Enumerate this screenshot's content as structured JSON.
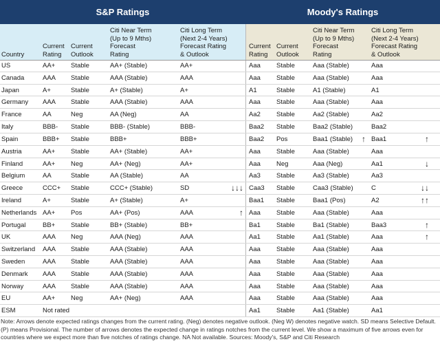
{
  "header": {
    "sp_title": "S&P Ratings",
    "moodys_title": "Moody's Ratings"
  },
  "columns": {
    "country": [
      "Country"
    ],
    "sp": [
      [
        "Current",
        "Rating"
      ],
      [
        "Current",
        "Outlook"
      ],
      [
        "Citi Near Term",
        "(Up to 9 Mths)",
        "Forecast",
        "Rating"
      ],
      [
        "Citi Long Term",
        "(Next 2-4 Years)",
        "Forecast Rating",
        "& Outlook"
      ]
    ],
    "moodys": [
      [
        "Current",
        "Rating"
      ],
      [
        "Current",
        "Outlook"
      ],
      [
        "Citi Near Term",
        "(Up to 9 Mths)",
        "Forecast",
        "Rating"
      ],
      [
        "Citi Long Term",
        "(Next 2-4 Years)",
        "Forecast Rating",
        "& Outlook"
      ]
    ]
  },
  "rows": [
    {
      "country": "US",
      "sp": [
        "AA+",
        "Stable",
        "AA+ (Stable)",
        "AA+"
      ],
      "moodys": [
        "Aaa",
        "Stable",
        "Aaa (Stable)",
        "Aaa"
      ]
    },
    {
      "country": "Canada",
      "sp": [
        "AAA",
        "Stable",
        "AAA (Stable)",
        "AAA"
      ],
      "moodys": [
        "Aaa",
        "Stable",
        "Aaa (Stable)",
        "Aaa"
      ]
    },
    {
      "country": "Japan",
      "sp": [
        "A+",
        "Stable",
        "A+ (Stable)",
        "A+"
      ],
      "moodys": [
        "A1",
        "Stable",
        "A1 (Stable)",
        "A1"
      ]
    },
    {
      "country": "Germany",
      "sp": [
        "AAA",
        "Stable",
        "AAA (Stable)",
        "AAA"
      ],
      "moodys": [
        "Aaa",
        "Stable",
        "Aaa (Stable)",
        "Aaa"
      ]
    },
    {
      "country": "France",
      "sp": [
        "AA",
        "Neg",
        "AA (Neg)",
        "AA"
      ],
      "moodys": [
        "Aa2",
        "Stable",
        "Aa2 (Stable)",
        "Aa2"
      ]
    },
    {
      "country": "Italy",
      "sp": [
        "BBB-",
        "Stable",
        "BBB- (Stable)",
        "BBB-"
      ],
      "moodys": [
        "Baa2",
        "Stable",
        "Baa2 (Stable)",
        "Baa2"
      ]
    },
    {
      "country": "Spain",
      "sp": [
        "BBB+",
        "Stable",
        "BBB+",
        "BBB+"
      ],
      "moodys": [
        "Baa2",
        "Pos",
        "Baa1 (Stable)",
        "Baa1"
      ],
      "moodys_near_arrow": "↑",
      "moodys_long_arrow": "↑"
    },
    {
      "country": "Austria",
      "sp": [
        "AA+",
        "Stable",
        "AA+ (Stable)",
        "AA+"
      ],
      "moodys": [
        "Aaa",
        "Stable",
        "Aaa (Stable)",
        "Aaa"
      ]
    },
    {
      "country": "Finland",
      "sp": [
        "AA+",
        "Neg",
        "AA+ (Neg)",
        "AA+"
      ],
      "moodys": [
        "Aaa",
        "Neg",
        "Aaa (Neg)",
        "Aa1"
      ],
      "moodys_long_arrow": "↓"
    },
    {
      "country": "Belgium",
      "sp": [
        "AA",
        "Stable",
        "AA (Stable)",
        "AA"
      ],
      "moodys": [
        "Aa3",
        "Stable",
        "Aa3 (Stable)",
        "Aa3"
      ]
    },
    {
      "country": "Greece",
      "sp": [
        "CCC+",
        "Stable",
        "CCC+ (Stable)",
        "SD"
      ],
      "sp_arrow": "↓↓↓",
      "moodys": [
        "Caa3",
        "Stable",
        "Caa3 (Stable)",
        "C"
      ],
      "moodys_long_arrow": "↓↓"
    },
    {
      "country": "Ireland",
      "sp": [
        "A+",
        "Stable",
        "A+ (Stable)",
        "A+"
      ],
      "moodys": [
        "Baa1",
        "Stable",
        "Baa1 (Pos)",
        "A2"
      ],
      "moodys_long_arrow": "↑↑"
    },
    {
      "country": "Netherlands",
      "sp": [
        "AA+",
        "Pos",
        "AA+ (Pos)",
        "AAA"
      ],
      "sp_arrow": "↑",
      "moodys": [
        "Aaa",
        "Stable",
        "Aaa (Stable)",
        "Aaa"
      ]
    },
    {
      "country": "Portugal",
      "sp": [
        "BB+",
        "Stable",
        "BB+ (Stable)",
        "BB+"
      ],
      "moodys": [
        "Ba1",
        "Stable",
        "Ba1 (Stable)",
        "Baa3"
      ],
      "moodys_long_arrow": "↑"
    },
    {
      "country": "UK",
      "sp": [
        "AAA",
        "Neg",
        "AAA (Neg)",
        "AAA"
      ],
      "moodys": [
        "Aa1",
        "Stable",
        "Aa1 (Stable)",
        "Aaa"
      ],
      "moodys_long_arrow": "↑"
    },
    {
      "country": "Switzerland",
      "sp": [
        "AAA",
        "Stable",
        "AAA (Stable)",
        "AAA"
      ],
      "moodys": [
        "Aaa",
        "Stable",
        "Aaa (Stable)",
        "Aaa"
      ]
    },
    {
      "country": "Sweden",
      "sp": [
        "AAA",
        "Stable",
        "AAA (Stable)",
        "AAA"
      ],
      "moodys": [
        "Aaa",
        "Stable",
        "Aaa (Stable)",
        "Aaa"
      ]
    },
    {
      "country": "Denmark",
      "sp": [
        "AAA",
        "Stable",
        "AAA (Stable)",
        "AAA"
      ],
      "moodys": [
        "Aaa",
        "Stable",
        "Aaa (Stable)",
        "Aaa"
      ]
    },
    {
      "country": "Norway",
      "sp": [
        "AAA",
        "Stable",
        "AAA (Stable)",
        "AAA"
      ],
      "moodys": [
        "Aaa",
        "Stable",
        "Aaa (Stable)",
        "Aaa"
      ]
    },
    {
      "country": "EU",
      "sp": [
        "AA+",
        "Neg",
        "AA+  (Neg)",
        "AAA"
      ],
      "moodys": [
        "Aaa",
        "Stable",
        "Aaa (Stable)",
        "Aaa"
      ]
    },
    {
      "country": "ESM",
      "sp": [
        "Not rated"
      ],
      "moodys": [
        "Aa1",
        "Stable",
        "Aa1 (Stable)",
        "Aa1"
      ]
    }
  ],
  "note": "Note: Arrows denote expected ratings changes from the current rating. (Neg) denotes negative outlook. (Neg W) denotes negative watch. SD means Selective Default. (P) means Provisional. The number of arrows denotes the expected change in ratings notches from the current level. We show a maximum of five arrows even for countries where we expect more than five notches of ratings change. NA Not available. Sources: Moody's, S&P and Citi Research"
}
